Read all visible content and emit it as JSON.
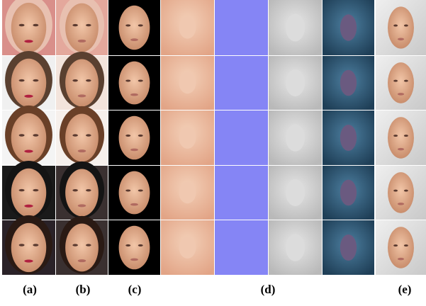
{
  "figure": {
    "labels": [
      "(a)",
      "(b)",
      "(c)",
      "(d)",
      "(e)"
    ]
  }
}
